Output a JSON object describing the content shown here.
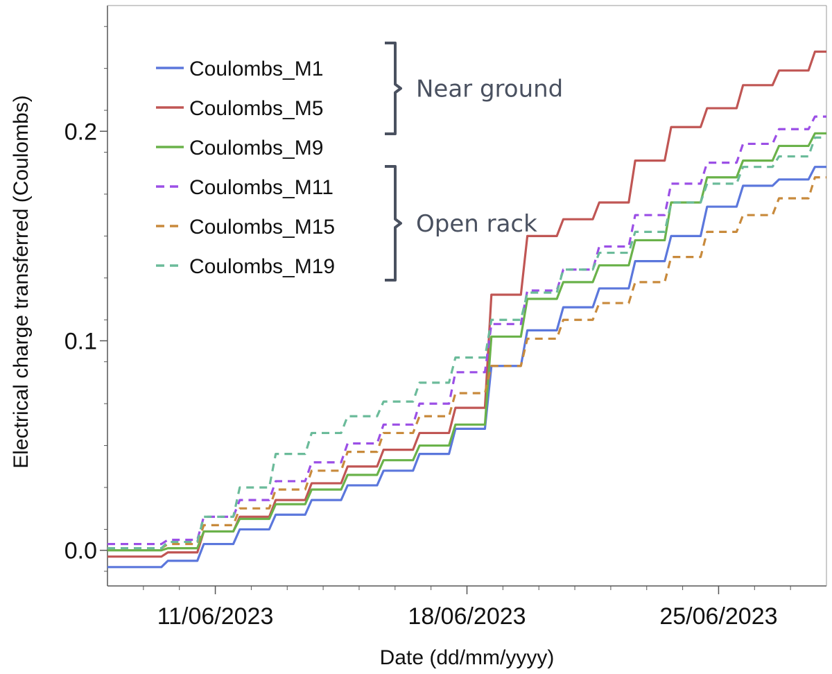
{
  "chart_data": {
    "type": "line",
    "xlabel": "Date (dd/mm/yyyy)",
    "ylabel": "Electrical charge transferred (Coulombs)",
    "xlim": [
      "2023-06-08",
      "2023-06-28"
    ],
    "ylim": [
      -0.017,
      0.26
    ],
    "x_ticks": [
      {
        "date": "2023-06-11",
        "label": "11/06/2023"
      },
      {
        "date": "2023-06-18",
        "label": "18/06/2023"
      },
      {
        "date": "2023-06-25",
        "label": "25/06/2023"
      }
    ],
    "y_ticks": [
      {
        "value": 0.0,
        "label": "0.0"
      },
      {
        "value": 0.1,
        "label": "0.1"
      },
      {
        "value": 0.2,
        "label": "0.2"
      }
    ],
    "grid": false,
    "legend_position": "top-left",
    "legend_groups": [
      {
        "label": "Near ground",
        "members": [
          "Coulombs_M1",
          "Coulombs_M5",
          "Coulombs_M9"
        ]
      },
      {
        "label": "Open rack",
        "members": [
          "Coulombs_M11",
          "Coulombs_M15",
          "Coulombs_M19"
        ]
      }
    ],
    "x": [
      "2023-06-08",
      "2023-06-09",
      "2023-06-10",
      "2023-06-11",
      "2023-06-12",
      "2023-06-13",
      "2023-06-14",
      "2023-06-15",
      "2023-06-16",
      "2023-06-17",
      "2023-06-18",
      "2023-06-19",
      "2023-06-20",
      "2023-06-21",
      "2023-06-22",
      "2023-06-23",
      "2023-06-24",
      "2023-06-25",
      "2023-06-26",
      "2023-06-27",
      "2023-06-28"
    ],
    "series": [
      {
        "name": "Coulombs_M1",
        "color": "#5b77dc",
        "dash": "solid",
        "values": [
          -0.008,
          -0.008,
          -0.005,
          0.003,
          0.01,
          0.017,
          0.024,
          0.031,
          0.038,
          0.046,
          0.058,
          0.088,
          0.105,
          0.116,
          0.125,
          0.138,
          0.15,
          0.164,
          0.174,
          0.177,
          0.183
        ]
      },
      {
        "name": "Coulombs_M5",
        "color": "#c05654",
        "dash": "solid",
        "values": [
          -0.003,
          -0.003,
          -0.001,
          0.009,
          0.016,
          0.024,
          0.032,
          0.04,
          0.048,
          0.056,
          0.068,
          0.122,
          0.15,
          0.158,
          0.166,
          0.186,
          0.202,
          0.211,
          0.222,
          0.229,
          0.238
        ]
      },
      {
        "name": "Coulombs_M9",
        "color": "#6ab24a",
        "dash": "solid",
        "values": [
          0.0,
          0.0,
          0.001,
          0.009,
          0.015,
          0.022,
          0.029,
          0.036,
          0.043,
          0.05,
          0.06,
          0.102,
          0.12,
          0.128,
          0.136,
          0.148,
          0.166,
          0.178,
          0.186,
          0.193,
          0.199
        ]
      },
      {
        "name": "Coulombs_M11",
        "color": "#9b4fe6",
        "dash": "dashed",
        "values": [
          0.003,
          0.003,
          0.005,
          0.016,
          0.024,
          0.033,
          0.042,
          0.051,
          0.06,
          0.07,
          0.085,
          0.108,
          0.124,
          0.134,
          0.145,
          0.16,
          0.175,
          0.185,
          0.194,
          0.201,
          0.207
        ]
      },
      {
        "name": "Coulombs_M15",
        "color": "#c88a3c",
        "dash": "dashed",
        "values": [
          0.001,
          0.001,
          0.003,
          0.012,
          0.02,
          0.029,
          0.038,
          0.047,
          0.056,
          0.064,
          0.075,
          0.088,
          0.101,
          0.11,
          0.118,
          0.128,
          0.14,
          0.152,
          0.16,
          0.168,
          0.178
        ]
      },
      {
        "name": "Coulombs_M19",
        "color": "#6bbb9a",
        "dash": "dashed",
        "values": [
          0.001,
          0.001,
          0.004,
          0.016,
          0.03,
          0.046,
          0.056,
          0.064,
          0.071,
          0.08,
          0.092,
          0.11,
          0.123,
          0.134,
          0.142,
          0.152,
          0.166,
          0.175,
          0.183,
          0.188,
          0.197
        ]
      }
    ]
  }
}
